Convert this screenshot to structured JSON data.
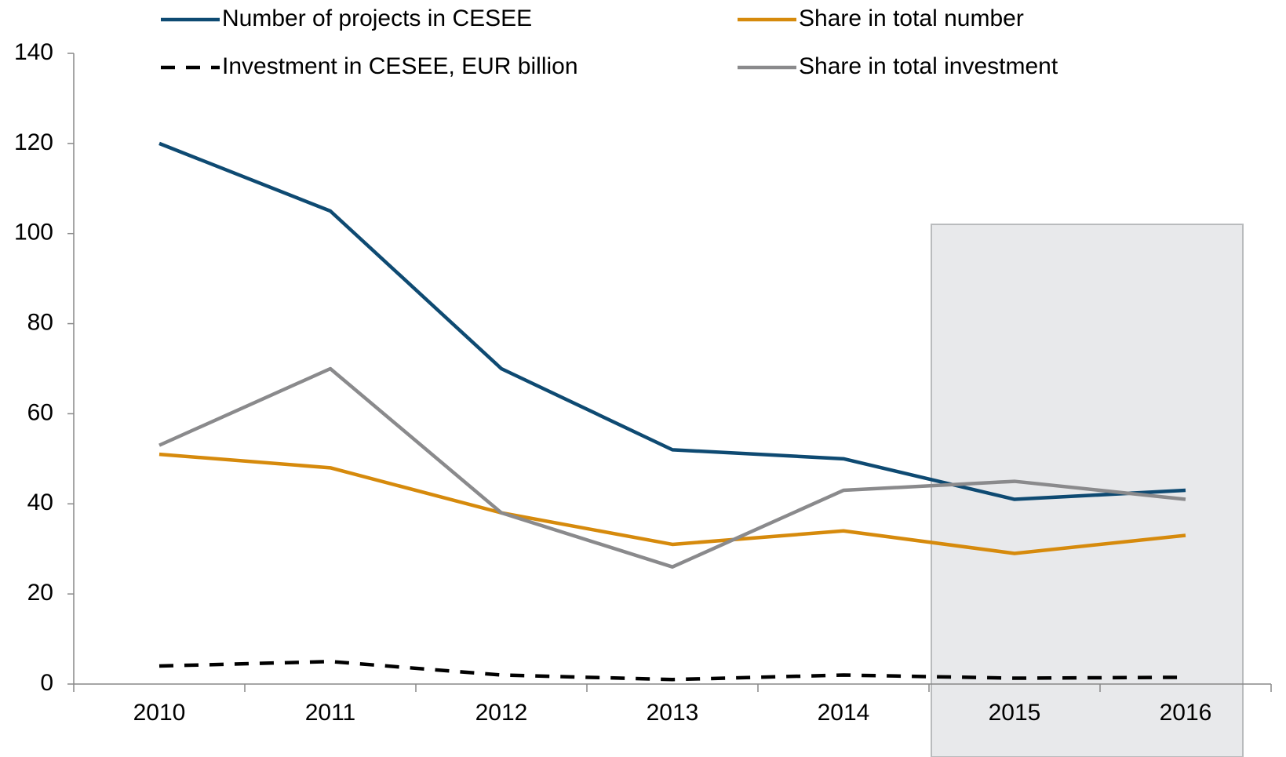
{
  "chart_data": {
    "type": "line",
    "categories": [
      "2010",
      "2011",
      "2012",
      "2013",
      "2014",
      "2015",
      "2016"
    ],
    "series": [
      {
        "name": "Number of projects in CESEE",
        "color": "#0e4a72",
        "values": [
          120,
          105,
          70,
          52,
          50,
          41,
          43
        ]
      },
      {
        "name": "Share in total number",
        "color": "#d68a0c",
        "values": [
          51,
          48,
          38,
          31,
          34,
          29,
          33
        ]
      },
      {
        "name": "Investment in CESEE, EUR billion",
        "color": "#000000",
        "dashed": true,
        "values": [
          4,
          5,
          2,
          1,
          2,
          1.3,
          1.5
        ]
      },
      {
        "name": "Share in total investment",
        "color": "#8a8a8c",
        "values": [
          53,
          70,
          38,
          26,
          43,
          45,
          41
        ]
      }
    ],
    "ylim": [
      0,
      140
    ],
    "yticks": [
      0,
      20,
      40,
      60,
      80,
      100,
      120,
      140
    ],
    "grid": false
  }
}
